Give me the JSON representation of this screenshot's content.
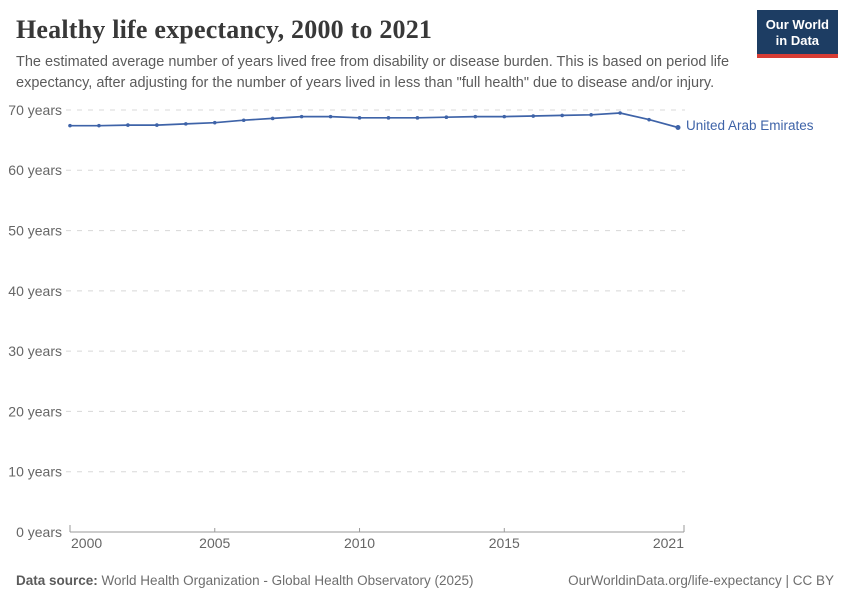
{
  "header": {
    "title": "Healthy life expectancy, 2000 to 2021",
    "subtitle": "The estimated average number of years lived free from disability or disease burden. This is based on period life expectancy, after adjusting for the number of years lived in less than \"full health\" due to disease and/or injury.",
    "logo": {
      "line1": "Our World",
      "line2": "in Data",
      "bg_color": "#1d3d63",
      "accent_color": "#d73c34"
    }
  },
  "chart_data": {
    "type": "line",
    "title": "Healthy life expectancy, 2000 to 2021",
    "xlabel": "",
    "ylabel": "",
    "xlim": [
      2000,
      2021
    ],
    "ylim": [
      0,
      70
    ],
    "x_ticks": [
      2000,
      2005,
      2010,
      2015,
      2021
    ],
    "y_ticks": [
      0,
      10,
      20,
      30,
      40,
      50,
      60,
      70
    ],
    "y_tick_suffix": " years",
    "grid": "horizontal-dashed",
    "legend_position": "end-of-line-label",
    "x": [
      2000,
      2001,
      2002,
      2003,
      2004,
      2005,
      2006,
      2007,
      2008,
      2009,
      2010,
      2011,
      2012,
      2013,
      2014,
      2015,
      2016,
      2017,
      2018,
      2019,
      2020,
      2021
    ],
    "series": [
      {
        "name": "United Arab Emirates",
        "color": "#3e63a8",
        "values": [
          67.4,
          67.4,
          67.5,
          67.5,
          67.7,
          67.9,
          68.3,
          68.6,
          68.9,
          68.9,
          68.7,
          68.7,
          68.7,
          68.8,
          68.9,
          68.9,
          69.0,
          69.1,
          69.2,
          69.5,
          68.4,
          67.1
        ]
      }
    ]
  },
  "footer": {
    "source_label": "Data source:",
    "source_text": "World Health Organization - Global Health Observatory (2025)",
    "right_text": "OurWorldinData.org/life-expectancy | CC BY"
  }
}
